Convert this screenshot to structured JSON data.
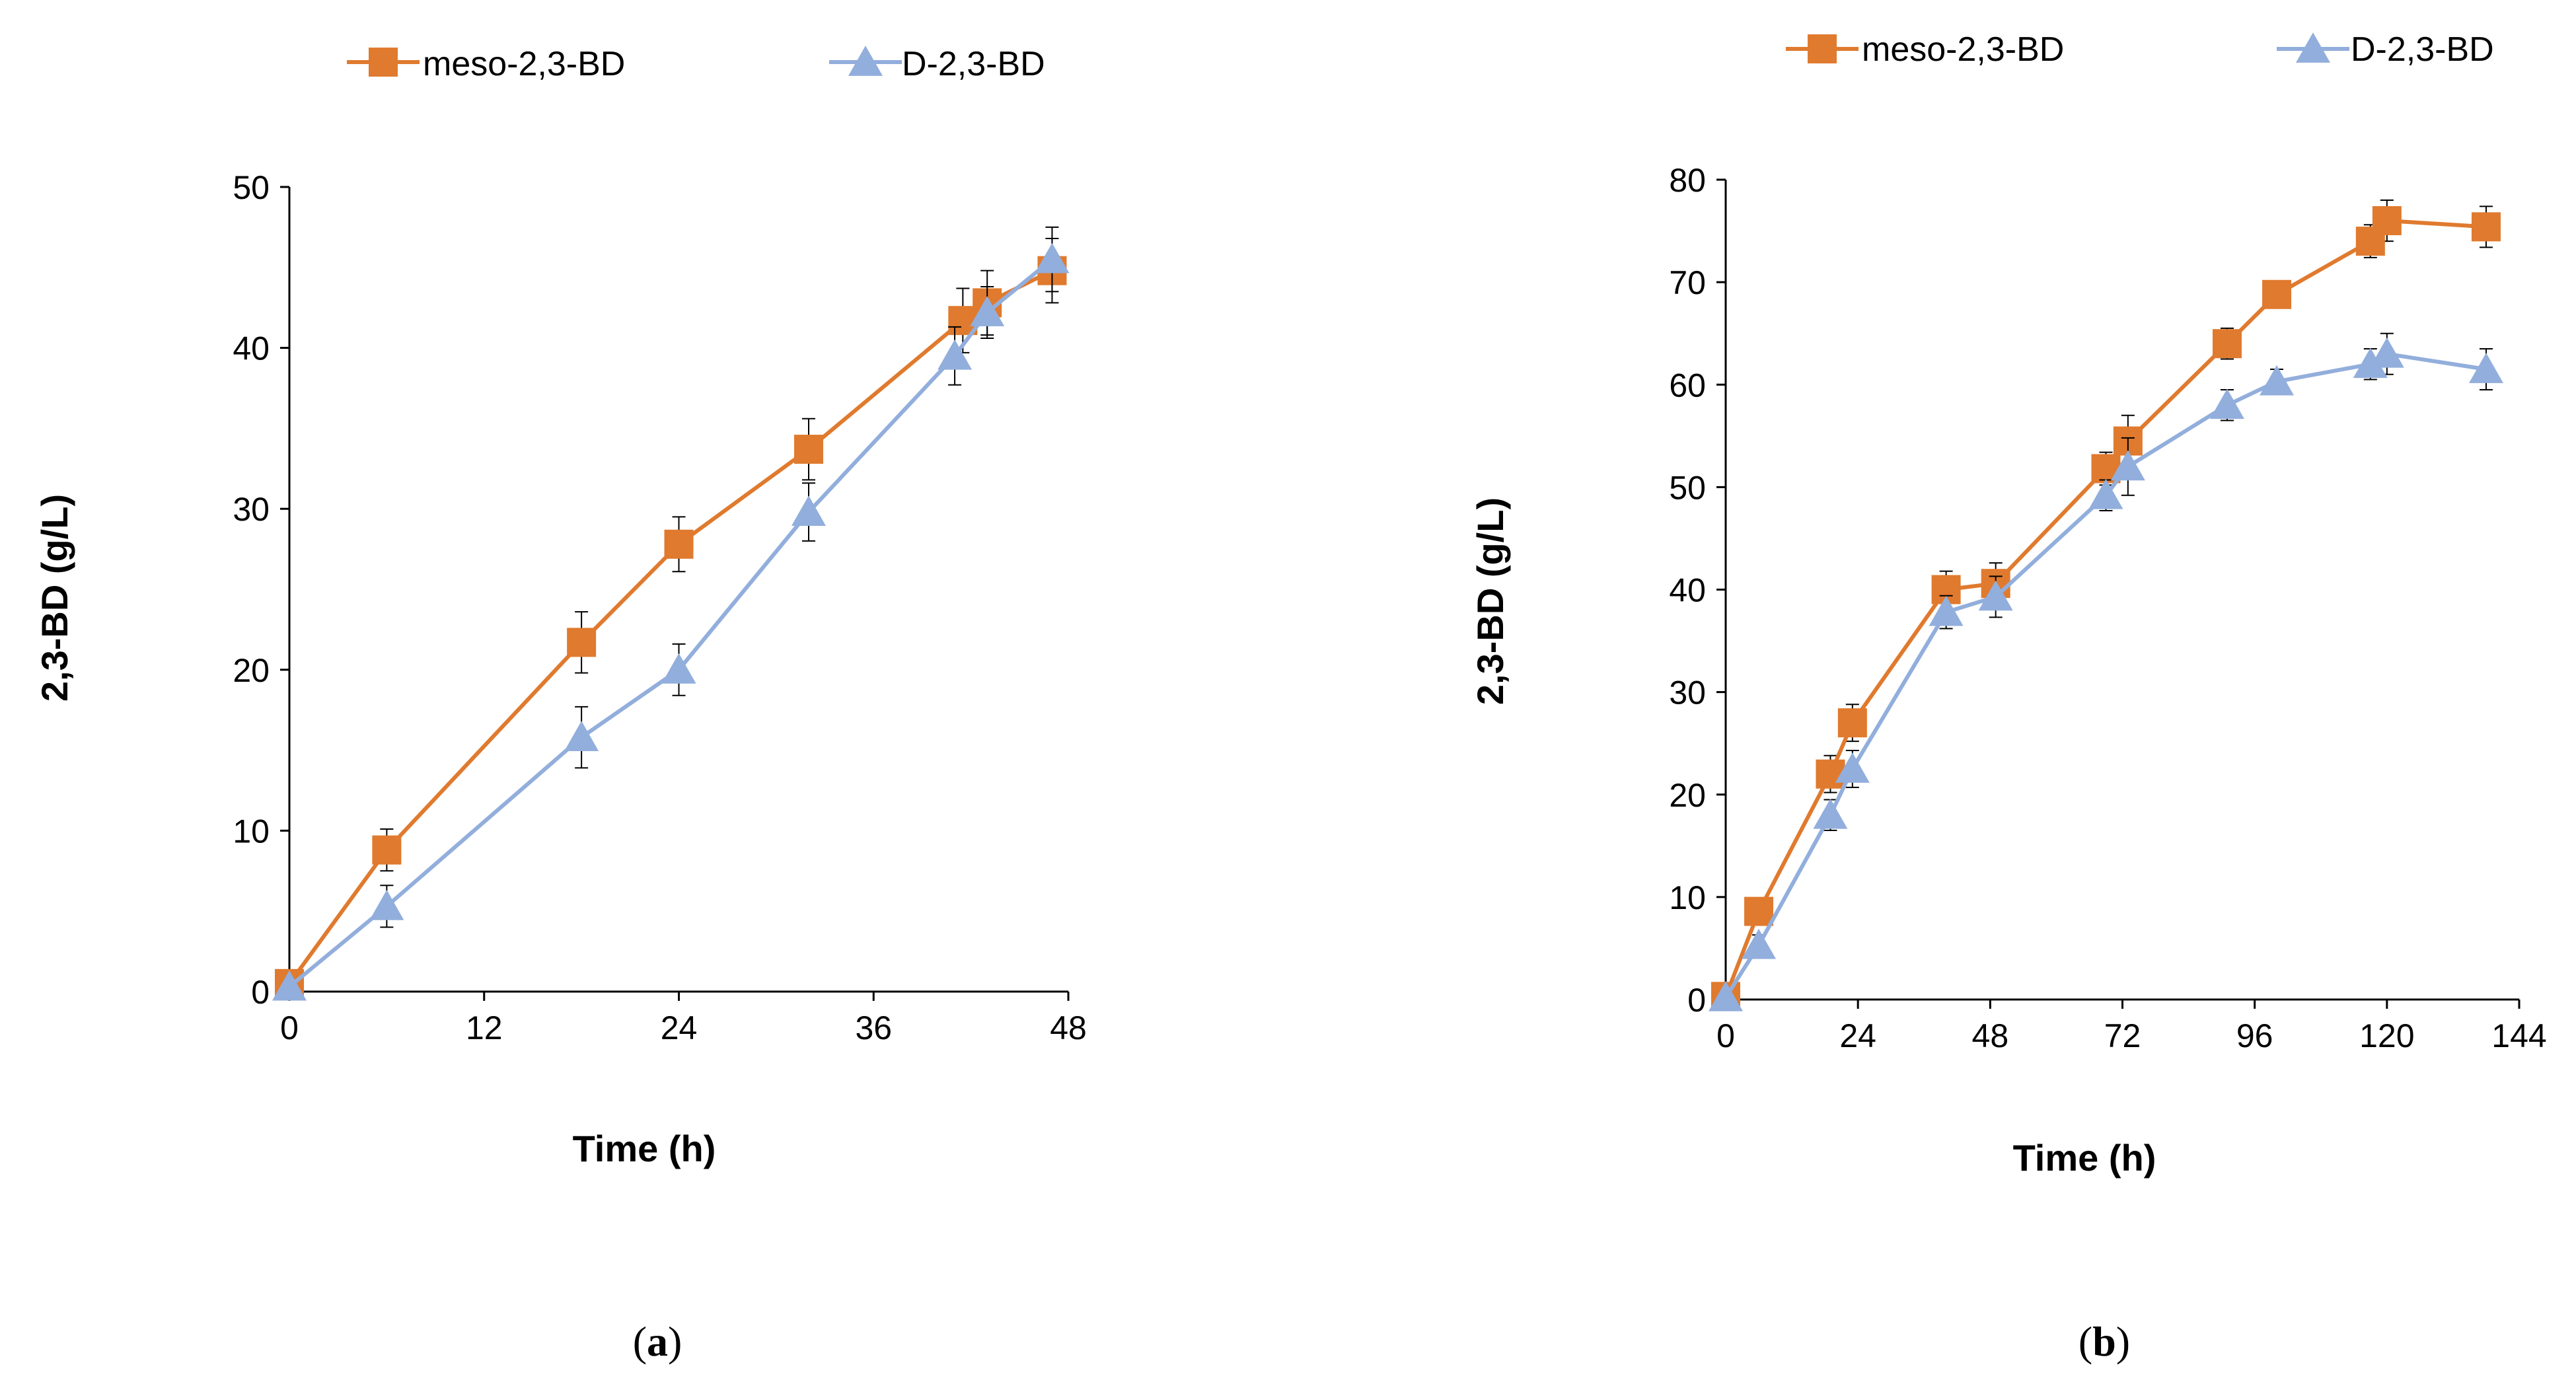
{
  "chart_data": [
    {
      "type": "line",
      "panel_label_open": "(",
      "panel_label_letter": "a",
      "panel_label_close": ")",
      "xlabel": "Time (h)",
      "ylabel": "2,3-BD (g/L)",
      "xlim": [
        0,
        48
      ],
      "ylim": [
        0,
        50
      ],
      "xticks": [
        0,
        12,
        24,
        36,
        48
      ],
      "yticks": [
        0,
        10,
        20,
        30,
        40,
        50
      ],
      "grid": false,
      "legend_position": "top",
      "series": [
        {
          "name": "meso-2,3-BD",
          "color": "#E07A2E",
          "marker": "square",
          "x": [
            0,
            6,
            18,
            24,
            32,
            41.5,
            43,
            47
          ],
          "y": [
            0.5,
            8.8,
            21.7,
            27.8,
            33.7,
            41.7,
            42.8,
            44.8
          ],
          "err": [
            0,
            1.3,
            1.9,
            1.7,
            1.9,
            2.0,
            2.0,
            2.0
          ]
        },
        {
          "name": "D-2,3-BD",
          "color": "#92AEDC",
          "marker": "triangle",
          "x": [
            0,
            6,
            18,
            24,
            32,
            41,
            43,
            47
          ],
          "y": [
            0.3,
            5.3,
            15.8,
            20.0,
            29.8,
            39.5,
            42.2,
            45.5
          ],
          "err": [
            0,
            1.3,
            1.9,
            1.6,
            1.8,
            1.8,
            1.6,
            2.0
          ]
        }
      ]
    },
    {
      "type": "line",
      "panel_label_open": "(",
      "panel_label_letter": "b",
      "panel_label_close": ")",
      "xlabel": "Time (h)",
      "ylabel": "2,3-BD (g/L)",
      "xlim": [
        0,
        144
      ],
      "ylim": [
        0,
        80
      ],
      "xticks": [
        0,
        24,
        48,
        72,
        96,
        120,
        144
      ],
      "yticks": [
        0,
        10,
        20,
        30,
        40,
        50,
        60,
        70,
        80
      ],
      "grid": false,
      "legend_position": "top",
      "series": [
        {
          "name": "meso-2,3-BD",
          "color": "#E07A2E",
          "marker": "square",
          "x": [
            0,
            6,
            19,
            23,
            40,
            49,
            69,
            73,
            91,
            100,
            117,
            120,
            138
          ],
          "y": [
            0.3,
            8.6,
            22.0,
            27.0,
            40.0,
            40.6,
            51.8,
            54.5,
            64.0,
            68.8,
            74.0,
            76.0,
            75.4
          ],
          "err": [
            0,
            1.0,
            1.8,
            1.8,
            1.8,
            2.0,
            1.6,
            2.5,
            1.5,
            1.2,
            1.6,
            2.0,
            2.0
          ]
        },
        {
          "name": "D-2,3-BD",
          "color": "#92AEDC",
          "marker": "triangle",
          "x": [
            0,
            6,
            19,
            23,
            40,
            49,
            69,
            73,
            91,
            100,
            117,
            120,
            138
          ],
          "y": [
            0.2,
            5.3,
            18.0,
            22.5,
            37.8,
            39.3,
            49.2,
            52.0,
            58.0,
            60.3,
            62.0,
            63.0,
            61.5
          ],
          "err": [
            0,
            1.0,
            1.5,
            1.8,
            1.6,
            2.0,
            1.5,
            2.8,
            1.5,
            1.2,
            1.5,
            2.0,
            2.0
          ]
        }
      ]
    }
  ]
}
